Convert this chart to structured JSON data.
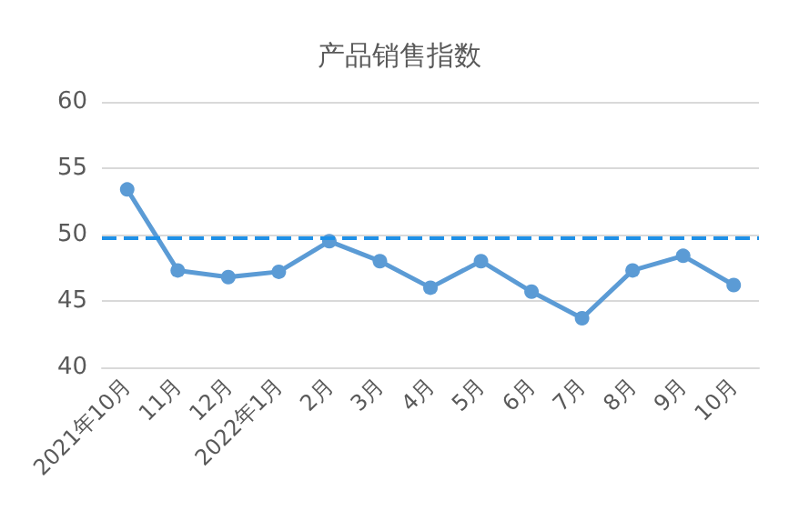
{
  "chart_data": {
    "type": "line",
    "title": "产品销售指数",
    "categories": [
      "2021年10月",
      "11月",
      "12月",
      "2022年1月",
      "2月",
      "3月",
      "4月",
      "5月",
      "6月",
      "7月",
      "8月",
      "9月",
      "10月"
    ],
    "series": [
      {
        "color": "#5b9bd5",
        "values": [
          53.4,
          47.3,
          46.8,
          47.2,
          49.5,
          48.0,
          46.0,
          48.0,
          45.7,
          43.7,
          47.3,
          48.4,
          46.2
        ]
      }
    ],
    "ylim": [
      40,
      60
    ],
    "yticks": [
      40,
      45,
      50,
      55,
      60
    ],
    "grid": "y",
    "marker": "circle",
    "line_style": "solid",
    "ref_lines": [
      {
        "axis": "y",
        "value": 49.8,
        "color": "#1e90e8",
        "line_style": "dashed"
      }
    ]
  }
}
